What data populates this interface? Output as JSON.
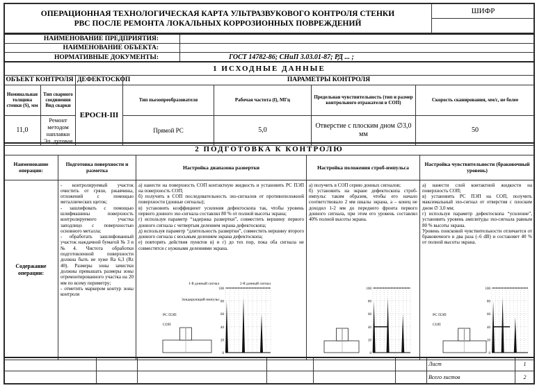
{
  "header": {
    "title_line1": "ОПЕРАЦИОННАЯ ТЕХНОЛОГИЧЕСКАЯ КАРТА УЛЬТРАЗВУКОВОГО КОНТРОЛЯ СТЕНКИ",
    "title_line2": "РВС ПОСЛЕ РЕМОНТА ЛОКАЛЬНЫХ КОРРОЗИОННЫХ ПОВРЕЖДЕНИЙ",
    "code_label": "ШИФР",
    "code_value": ""
  },
  "info": [
    {
      "label": "НАИМЕНОВАНИЕ ПРЕДПРИЯТИЯ:",
      "value": ""
    },
    {
      "label": "НАИМЕНОВАНИЕ ОБЪЕКТА:",
      "value": ""
    },
    {
      "label": "НОРМАТИВНЫЕ ДОКУМЕНТЫ:",
      "value": "ГОСТ 14782-86; СНиП 3.03.01-87; РД ... ;"
    }
  ],
  "section1": {
    "title": "1 ИСХОДНЫЕ ДАННЫЕ",
    "group_object": "ОБЪЕКТ КОНТРОЛЯ",
    "group_device": "ДЕФЕКТОСКОП",
    "group_params": "ПАРАМЕТРЫ КОНТРОЛЯ",
    "columns": [
      "Номинальная толщина стенки (S), мм",
      "Тип сварного соединения Вид сварки",
      "Тип пьезопреобразователя",
      "Рабочая частота (f), МГц",
      "Предельная чувствительность (тип и размер контрольного отражателя в СОП)",
      "Скорость сканирования, мм/с, не более"
    ],
    "values": [
      "11,0",
      "Ремонт методом наплавки Эл. дуговая",
      "Прямой РС",
      "5,0",
      "Отверстие с плоским дном ∅3,0 мм",
      "50"
    ],
    "device": "EPOCH-III"
  },
  "section2": {
    "title": "2 ПОДГОТОВКА К КОНТРОЛЮ",
    "columns": [
      "Наименование операции:",
      "Подготовка поверхности и разметка",
      "Настройка диапазона развертки",
      "Настройка положения строб-импульса",
      "Настройка чувствительности (браковочный уровень)"
    ],
    "row_label": "Содержание операции:",
    "prep": [
      "- контролируемый участок очистить от грязи, ржавчины, отложений с помощью металлических щеток;",
      "- зашлифовать с помощью шлифмашины поверхность контролируемого участка заподлицо с поверхностью основного металла;",
      "- обработать зашлифованный участок наждачной бумагой № 3 и №4. Чистота обработки подготовленной поверхности должна быть не хуже Ra 6,3 (Rz 40). Размеры зоны зачистки должны превышать размеры зоны отремонтированного участка на 20 мм по всему периметру;",
      "- отметить маркером контур зоны контроля"
    ],
    "range": [
      "а) нанести на поверхность СОП контактную жидкость и установить РС ПЭП на поверхность СОП;",
      "б) получить в СОП последовательность эхо-сигналов от противоположной поверхности (донные сигналы);",
      "в) установить коэффициент усиления дефектоскопа так, чтобы уровень первого донного эхо-сигнала составлял 80 % от полной высоты экрана;",
      "г) используя параметр “задержка развертки”, совместить вершину первого донного сигнала с четвертым делением экрана дефектоскопа;",
      "д) используя параметр “длительность развертки”, совместить вершину второго донного сигнала с восьмым делением экрана дефектоскопа;",
      "е) повторять действия пунктов в) и г) до тех пор, пока оба сигнала не совместятся с нужными делениями экрана."
    ],
    "strobe": [
      "а) получить в СОП серию донных сигналов;",
      "б) установить на экране дефектоскопа строб-импульс таким образом, чтобы его начало соответствовало 2 мм шкалы экрана, а – конец не доходил 1-2 мм до переднего фронта первого донного сигнала, при этом его уровень составлял 40% полной высоты экрана."
    ],
    "sens": [
      "а) нанести слой контактной жидкости на поверхность СОП;",
      "в) установить РС ПЭП на СОП, получить максимальный эхо-сигнал от отверстия с плоским дном ∅ 3,0 мм;",
      "г) используя параметр дефектоскопа “усиление”, установить уровень амплитуды эхо-сигнала равным 80 % высоты экрана.",
      "Уровень поисковой чувствительности отличается от браковочного в два раза (–6 dB) и составляет 40 % от полной высоты экрана."
    ],
    "diagram": {
      "echo1": "1-й донный сигнал",
      "echo2": "2-й донный сигнал",
      "probe_pulse": "Зондирующий импульс",
      "transducer": "РС ПЭП",
      "block": "СОП",
      "y_ticks": [
        "100",
        "80",
        "60",
        "40",
        "20",
        "0"
      ]
    }
  },
  "footer": {
    "sheet_label": "Лист",
    "sheet_value": "1",
    "total_label": "Всего листов",
    "total_value": "2"
  }
}
